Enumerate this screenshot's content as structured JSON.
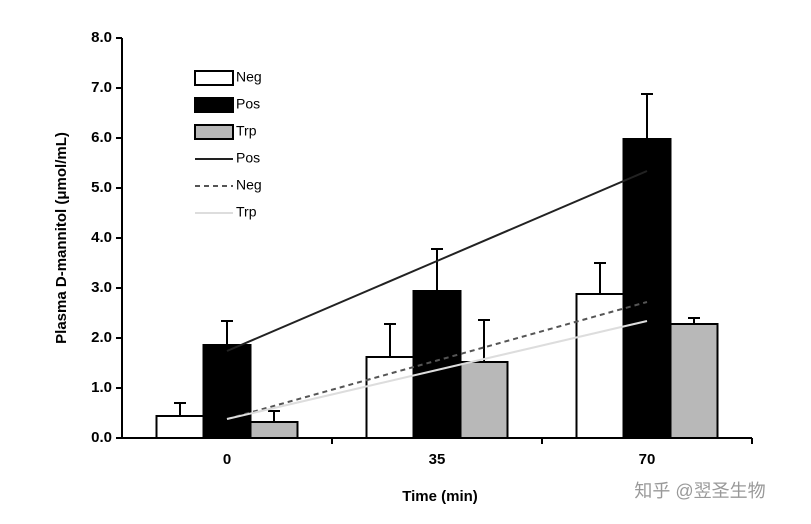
{
  "chart_data": {
    "type": "bar",
    "xlabel": "Time (min)",
    "ylabel": "Plasma D-mannitol (μmol/mL)",
    "categories": [
      "0",
      "35",
      "70"
    ],
    "series": [
      {
        "name": "Neg",
        "color": "#ffffff",
        "values": [
          0.44,
          1.62,
          2.88
        ],
        "errors": [
          0.26,
          0.66,
          0.62
        ]
      },
      {
        "name": "Pos",
        "color": "#000000",
        "values": [
          1.86,
          2.94,
          5.98
        ],
        "errors": [
          0.48,
          0.84,
          0.9
        ]
      },
      {
        "name": "Trp",
        "color": "#b8b8b8",
        "values": [
          0.32,
          1.52,
          2.28
        ],
        "errors": [
          0.22,
          0.84,
          0.12
        ]
      }
    ],
    "trend_series": [
      {
        "name": "Pos",
        "color": "#222222",
        "dash": false,
        "values": [
          1.74,
          3.54,
          5.34
        ]
      },
      {
        "name": "Neg",
        "color": "#555555",
        "dash": true,
        "values": [
          0.38,
          1.55,
          2.72
        ]
      },
      {
        "name": "Trp",
        "color": "#dddddd",
        "dash": false,
        "values": [
          0.38,
          1.36,
          2.34
        ]
      }
    ],
    "ylim": [
      0,
      8
    ],
    "yticks": [
      {
        "value": 0,
        "label": "0.0"
      },
      {
        "value": 1,
        "label": "1.0"
      },
      {
        "value": 2,
        "label": "2.0"
      },
      {
        "value": 3,
        "label": "3.0"
      },
      {
        "value": 4,
        "label": "4.0"
      },
      {
        "value": 5,
        "label": "5.0"
      },
      {
        "value": 6,
        "label": "6.0"
      },
      {
        "value": 7,
        "label": "7.0"
      },
      {
        "value": 8,
        "label": "8.0"
      }
    ]
  },
  "watermark": "知乎 @翌圣生物"
}
